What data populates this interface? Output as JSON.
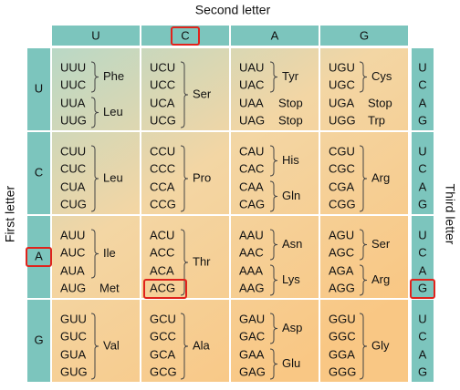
{
  "title": "Second letter",
  "first_axis": "First letter",
  "third_axis": "Third letter",
  "second_letters": [
    "U",
    "C",
    "A",
    "G"
  ],
  "rows": [
    {
      "first": "U",
      "third": [
        "U",
        "C",
        "A",
        "G"
      ],
      "cells": [
        {
          "groups": [
            {
              "codons": [
                "UUU",
                "UUC"
              ],
              "amino_acid": "Phe"
            },
            {
              "codons": [
                "UUA",
                "UUG"
              ],
              "amino_acid": "Leu"
            }
          ]
        },
        {
          "groups": [
            {
              "codons": [
                "UCU",
                "UCC",
                "UCA",
                "UCG"
              ],
              "amino_acid": "Ser"
            }
          ]
        },
        {
          "groups": [
            {
              "codons": [
                "UAU",
                "UAC"
              ],
              "amino_acid": "Tyr"
            },
            {
              "codons": [
                "UAA"
              ],
              "amino_acid": "Stop"
            },
            {
              "codons": [
                "UAG"
              ],
              "amino_acid": "Stop"
            }
          ]
        },
        {
          "groups": [
            {
              "codons": [
                "UGU",
                "UGC"
              ],
              "amino_acid": "Cys"
            },
            {
              "codons": [
                "UGA"
              ],
              "amino_acid": "Stop"
            },
            {
              "codons": [
                "UGG"
              ],
              "amino_acid": "Trp"
            }
          ]
        }
      ]
    },
    {
      "first": "C",
      "third": [
        "U",
        "C",
        "A",
        "G"
      ],
      "cells": [
        {
          "groups": [
            {
              "codons": [
                "CUU",
                "CUC",
                "CUA",
                "CUG"
              ],
              "amino_acid": "Leu"
            }
          ]
        },
        {
          "groups": [
            {
              "codons": [
                "CCU",
                "CCC",
                "CCA",
                "CCG"
              ],
              "amino_acid": "Pro"
            }
          ]
        },
        {
          "groups": [
            {
              "codons": [
                "CAU",
                "CAC"
              ],
              "amino_acid": "His"
            },
            {
              "codons": [
                "CAA",
                "CAG"
              ],
              "amino_acid": "Gln"
            }
          ]
        },
        {
          "groups": [
            {
              "codons": [
                "CGU",
                "CGC",
                "CGA",
                "CGG"
              ],
              "amino_acid": "Arg"
            }
          ]
        }
      ]
    },
    {
      "first": "A",
      "third": [
        "U",
        "C",
        "A",
        "G"
      ],
      "cells": [
        {
          "groups": [
            {
              "codons": [
                "AUU",
                "AUC",
                "AUA"
              ],
              "amino_acid": "Ile"
            },
            {
              "codons": [
                "AUG"
              ],
              "amino_acid": "Met"
            }
          ]
        },
        {
          "groups": [
            {
              "codons": [
                "ACU",
                "ACC",
                "ACA",
                "ACG"
              ],
              "amino_acid": "Thr"
            }
          ]
        },
        {
          "groups": [
            {
              "codons": [
                "AAU",
                "AAC"
              ],
              "amino_acid": "Asn"
            },
            {
              "codons": [
                "AAA",
                "AAG"
              ],
              "amino_acid": "Lys"
            }
          ]
        },
        {
          "groups": [
            {
              "codons": [
                "AGU",
                "AGC"
              ],
              "amino_acid": "Ser"
            },
            {
              "codons": [
                "AGA",
                "AGG"
              ],
              "amino_acid": "Arg"
            }
          ]
        }
      ]
    },
    {
      "first": "G",
      "third": [
        "U",
        "C",
        "A",
        "G"
      ],
      "cells": [
        {
          "groups": [
            {
              "codons": [
                "GUU",
                "GUC",
                "GUA",
                "GUG"
              ],
              "amino_acid": "Val"
            }
          ]
        },
        {
          "groups": [
            {
              "codons": [
                "GCU",
                "GCC",
                "GCA",
                "GCG"
              ],
              "amino_acid": "Ala"
            }
          ]
        },
        {
          "groups": [
            {
              "codons": [
                "GAU",
                "GAC"
              ],
              "amino_acid": "Asp"
            },
            {
              "codons": [
                "GAA",
                "GAG"
              ],
              "amino_acid": "Glu"
            }
          ]
        },
        {
          "groups": [
            {
              "codons": [
                "GGU",
                "GGC",
                "GGA",
                "GGG"
              ],
              "amino_acid": "Gly"
            }
          ]
        }
      ]
    }
  ]
}
